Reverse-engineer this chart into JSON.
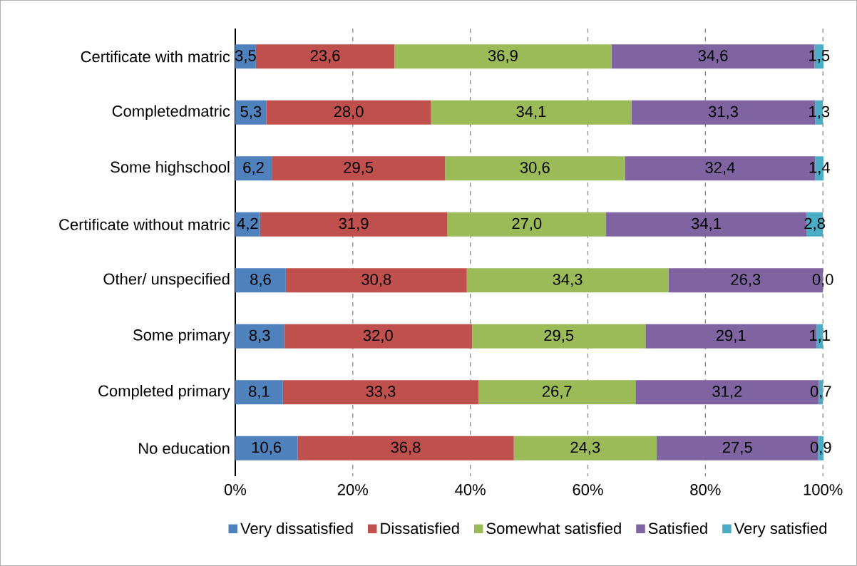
{
  "chart_data": {
    "type": "bar",
    "orientation": "horizontal",
    "stacked": true,
    "categories": [
      "Certificate with matric",
      "Completedmatric",
      "Some highschool",
      "Certificate without matric",
      "Other/ unspecified",
      "Some primary",
      "Completed primary",
      "No education"
    ],
    "series": [
      {
        "name": "Very dissatisfied",
        "color": "#4f81bd",
        "values": [
          3.5,
          5.3,
          6.2,
          4.2,
          8.6,
          8.3,
          8.1,
          10.6
        ],
        "value_labels": [
          "3,5",
          "5,3",
          "6,2",
          "4,2",
          "8,6",
          "8,3",
          "8,1",
          "10,6"
        ]
      },
      {
        "name": "Dissatisfied",
        "color": "#c0504d",
        "values": [
          23.6,
          28.0,
          29.5,
          31.9,
          30.8,
          32.0,
          33.3,
          36.8
        ],
        "value_labels": [
          "23,6",
          "28,0",
          "29,5",
          "31,9",
          "30,8",
          "32,0",
          "33,3",
          "36,8"
        ]
      },
      {
        "name": "Somewhat satisfied",
        "color": "#9bbb59",
        "values": [
          36.9,
          34.1,
          30.6,
          27.0,
          34.3,
          29.5,
          26.7,
          24.3
        ],
        "value_labels": [
          "36,9",
          "34,1",
          "30,6",
          "27,0",
          "34,3",
          "29,5",
          "26,7",
          "24,3"
        ]
      },
      {
        "name": "Satisfied",
        "color": "#8064a2",
        "values": [
          34.6,
          31.3,
          32.4,
          34.1,
          26.3,
          29.1,
          31.2,
          27.5
        ],
        "value_labels": [
          "34,6",
          "31,3",
          "32,4",
          "34,1",
          "26,3",
          "29,1",
          "31,2",
          "27,5"
        ]
      },
      {
        "name": "Very satisfied",
        "color": "#4bacc6",
        "values": [
          1.5,
          1.3,
          1.4,
          2.8,
          0.0,
          1.1,
          0.7,
          0.9
        ],
        "value_labels": [
          "1,5",
          "1,3",
          "1,4",
          "2,8",
          "0,0",
          "1,1",
          "0,7",
          "0,9"
        ]
      }
    ],
    "xlim": [
      0,
      100.1
    ],
    "xticks": [
      {
        "value": 0,
        "label": "0%"
      },
      {
        "value": 20,
        "label": "20%"
      },
      {
        "value": 40,
        "label": "40%"
      },
      {
        "value": 60,
        "label": "60%"
      },
      {
        "value": 80,
        "label": "80%"
      },
      {
        "value": 100,
        "label": "100%"
      }
    ],
    "grid": "x",
    "legend": "bottom"
  }
}
